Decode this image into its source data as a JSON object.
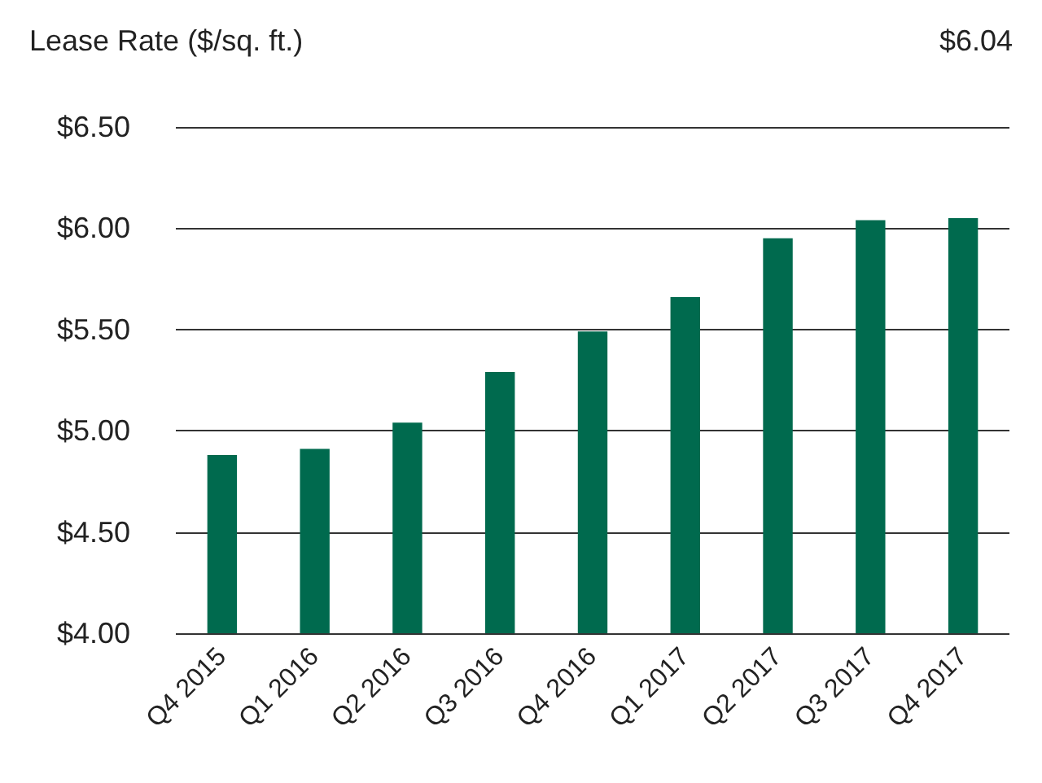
{
  "chart_data": {
    "type": "bar",
    "ylabel": "Lease Rate ($/sq. ft.)",
    "annotations": [
      "$6.04"
    ],
    "categories": [
      "Q4 2015",
      "Q1 2016",
      "Q2 2016",
      "Q3 2016",
      "Q4 2016",
      "Q1 2017",
      "Q2 2017",
      "Q3 2017",
      "Q4 2017"
    ],
    "values": [
      4.88,
      4.91,
      5.04,
      5.29,
      5.49,
      5.66,
      5.95,
      6.04,
      6.05
    ],
    "color": "#006a4e",
    "ylim": [
      4,
      6.5
    ],
    "yticks": [
      {
        "value": 4,
        "label": "$4.00"
      },
      {
        "value": 4.5,
        "label": "$4.50"
      },
      {
        "value": 5,
        "label": "$5.00"
      },
      {
        "value": 5.5,
        "label": "$5.50"
      },
      {
        "value": 6,
        "label": "$6.00"
      },
      {
        "value": 6.5,
        "label": "$6.50"
      }
    ],
    "grid": "y"
  }
}
